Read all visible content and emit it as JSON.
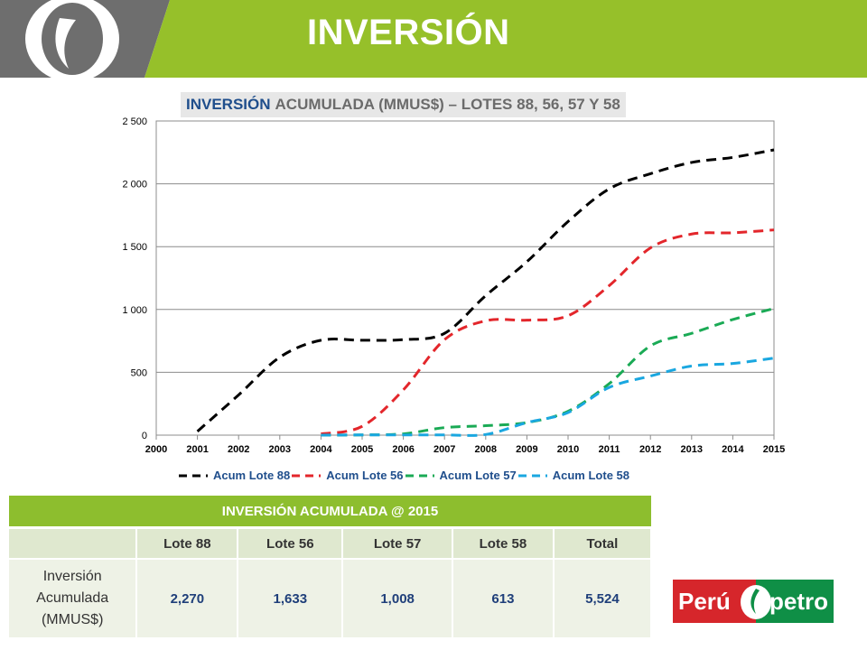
{
  "slide": {
    "title": "INVERSIÓN"
  },
  "chart_title": {
    "highlight": "INVERSIÓN",
    "rest": "ACUMULADA (MMUS$) – LOTES 88, 56, 57 Y 58"
  },
  "chart_data": {
    "type": "line",
    "title": "INVERSIÓN ACUMULADA (MMUS$) – LOTES 88, 56, 57 Y 58",
    "xlabel": "",
    "ylabel": "",
    "xlim": [
      2000,
      2015
    ],
    "ylim": [
      0,
      2500
    ],
    "x_ticks": [
      "2000",
      "2001",
      "2002",
      "2003",
      "2004",
      "2005",
      "2006",
      "2007",
      "2008",
      "2009",
      "2010",
      "2011",
      "2012",
      "2013",
      "2014",
      "2015"
    ],
    "y_ticks": [
      {
        "value": 0,
        "label": "0"
      },
      {
        "value": 500,
        "label": "500"
      },
      {
        "value": 1000,
        "label": "1 000"
      },
      {
        "value": 1500,
        "label": "1 500"
      },
      {
        "value": 2000,
        "label": "2 000"
      },
      {
        "value": 2500,
        "label": "2 500"
      }
    ],
    "grid": true,
    "legend_position": "bottom",
    "series": [
      {
        "name": "Acum Lote 88",
        "color": "#000000",
        "points": [
          [
            2001,
            30
          ],
          [
            2002,
            320
          ],
          [
            2003,
            620
          ],
          [
            2004,
            755
          ],
          [
            2005,
            755
          ],
          [
            2006,
            760
          ],
          [
            2007,
            810
          ],
          [
            2008,
            1110
          ],
          [
            2009,
            1380
          ],
          [
            2010,
            1700
          ],
          [
            2011,
            1960
          ],
          [
            2012,
            2080
          ],
          [
            2013,
            2170
          ],
          [
            2014,
            2210
          ],
          [
            2015,
            2270
          ]
        ]
      },
      {
        "name": "Acum Lote 56",
        "color": "#e3262b",
        "points": [
          [
            2004,
            10
          ],
          [
            2005,
            70
          ],
          [
            2006,
            360
          ],
          [
            2007,
            760
          ],
          [
            2008,
            910
          ],
          [
            2009,
            915
          ],
          [
            2010,
            950
          ],
          [
            2011,
            1190
          ],
          [
            2012,
            1490
          ],
          [
            2013,
            1600
          ],
          [
            2014,
            1610
          ],
          [
            2015,
            1633
          ]
        ]
      },
      {
        "name": "Acum Lote 57",
        "color": "#1aaa55",
        "points": [
          [
            2004,
            0
          ],
          [
            2005,
            2
          ],
          [
            2006,
            10
          ],
          [
            2007,
            60
          ],
          [
            2008,
            75
          ],
          [
            2009,
            100
          ],
          [
            2010,
            190
          ],
          [
            2011,
            410
          ],
          [
            2012,
            710
          ],
          [
            2013,
            810
          ],
          [
            2014,
            920
          ],
          [
            2015,
            1008
          ]
        ]
      },
      {
        "name": "Acum Lote 58",
        "color": "#1aa7e0",
        "points": [
          [
            2004,
            0
          ],
          [
            2005,
            2
          ],
          [
            2006,
            2
          ],
          [
            2007,
            2
          ],
          [
            2008,
            5
          ],
          [
            2009,
            100
          ],
          [
            2010,
            180
          ],
          [
            2011,
            380
          ],
          [
            2012,
            470
          ],
          [
            2013,
            550
          ],
          [
            2014,
            570
          ],
          [
            2015,
            613
          ]
        ]
      }
    ]
  },
  "legend": [
    {
      "label": "Acum Lote 88",
      "color": "#000000"
    },
    {
      "label": "Acum Lote 56",
      "color": "#e3262b"
    },
    {
      "label": "Acum Lote 57",
      "color": "#1aaa55"
    },
    {
      "label": "Acum Lote 58",
      "color": "#1aa7e0"
    }
  ],
  "table": {
    "title": "INVERSIÓN ACUMULADA @ 2015",
    "columns": [
      "",
      "Lote 88",
      "Lote 56",
      "Lote 57",
      "Lote 58",
      "Total"
    ],
    "row_label": [
      "Inversión",
      "Acumulada",
      "(MMUS$)"
    ],
    "values": [
      "2,270",
      "1,633",
      "1,008",
      "613",
      "5,524"
    ]
  },
  "logo": {
    "left_text": "Perú",
    "right_text": "petro"
  },
  "colors": {
    "header_green": "#96c02a",
    "header_gray": "#6e6e6e",
    "table_header": "#8dbe2e"
  }
}
